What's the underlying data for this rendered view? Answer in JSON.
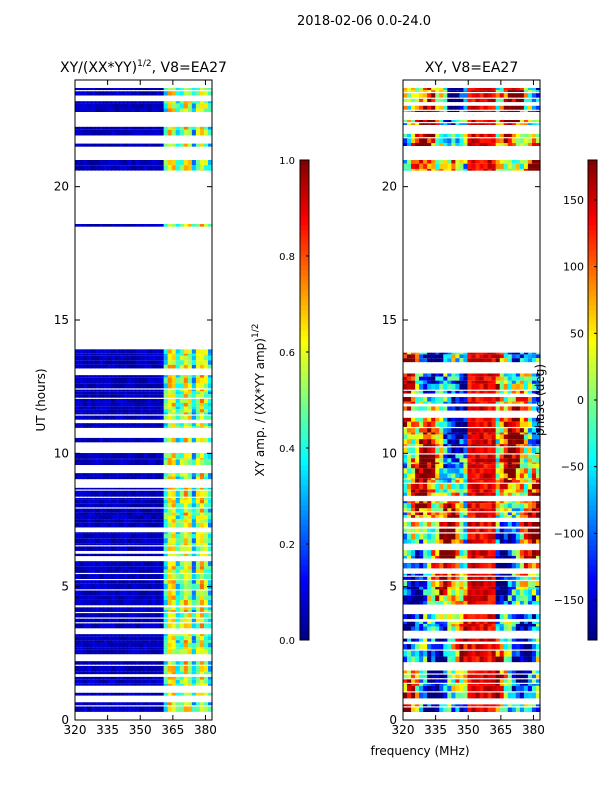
{
  "figure": {
    "suptitle": "2018-02-06 0.0-24.0",
    "xlabel": "frequency (MHz)"
  },
  "colors": {
    "jet": [
      "#00007f",
      "#0000ff",
      "#007fff",
      "#00ffff",
      "#7fff7f",
      "#ffff00",
      "#ff7f00",
      "#ff0000",
      "#7f0000"
    ],
    "gap": "#ffffff",
    "frame": "#000000"
  },
  "chart_data": [
    {
      "type": "heatmap",
      "title_text": "XY/(XX*YY)",
      "title_exponent": "1/2",
      "title_suffix": ", V8=EA27",
      "xlabel": "",
      "ylabel": "UT (hours)",
      "xlim": [
        320,
        383
      ],
      "ylim": [
        0,
        24
      ],
      "xticks": [
        "320",
        "335",
        "350",
        "365",
        "380"
      ],
      "xtick_values": [
        320,
        335,
        350,
        365,
        380
      ],
      "yticks": [
        "0",
        "5",
        "10",
        "15",
        "20"
      ],
      "ytick_values": [
        0,
        5,
        10,
        15,
        20
      ],
      "data_hours": [
        [
          0.3,
          13.9
        ],
        [
          18.5,
          18.6
        ],
        [
          20.6,
          21.0
        ],
        [
          21.5,
          22.5
        ],
        [
          22.8,
          23.7
        ]
      ],
      "quantity": "amplitude ratio",
      "colorbar": {
        "label": "XY amp. / (XX*YY amp)",
        "label_exponent": "1/2",
        "range": [
          0.0,
          1.0
        ],
        "ticks": [
          "0.0",
          "0.2",
          "0.4",
          "0.6",
          "0.8",
          "1.0"
        ],
        "tick_values": [
          0.0,
          0.2,
          0.4,
          0.6,
          0.8,
          1.0
        ]
      }
    },
    {
      "type": "heatmap",
      "title": "XY, V8=EA27",
      "xlabel": "frequency (MHz)",
      "ylabel": "",
      "xlim": [
        320,
        383
      ],
      "ylim": [
        0,
        24
      ],
      "xticks": [
        "320",
        "335",
        "350",
        "365",
        "380"
      ],
      "xtick_values": [
        320,
        335,
        350,
        365,
        380
      ],
      "yticks": [
        "0",
        "5",
        "10",
        "15",
        "20"
      ],
      "ytick_values": [
        0,
        5,
        10,
        15,
        20
      ],
      "data_hours": [
        [
          0.3,
          13.9
        ],
        [
          18.5,
          18.6
        ],
        [
          20.6,
          21.0
        ],
        [
          21.5,
          22.5
        ],
        [
          22.8,
          23.7
        ]
      ],
      "quantity": "phase",
      "colorbar": {
        "label": "phase (deg)",
        "range": [
          -180,
          180
        ],
        "ticks": [
          "−150",
          "−100",
          "−50",
          "0",
          "50",
          "100",
          "150"
        ],
        "tick_values": [
          -150,
          -100,
          -50,
          0,
          50,
          100,
          150
        ]
      }
    }
  ]
}
